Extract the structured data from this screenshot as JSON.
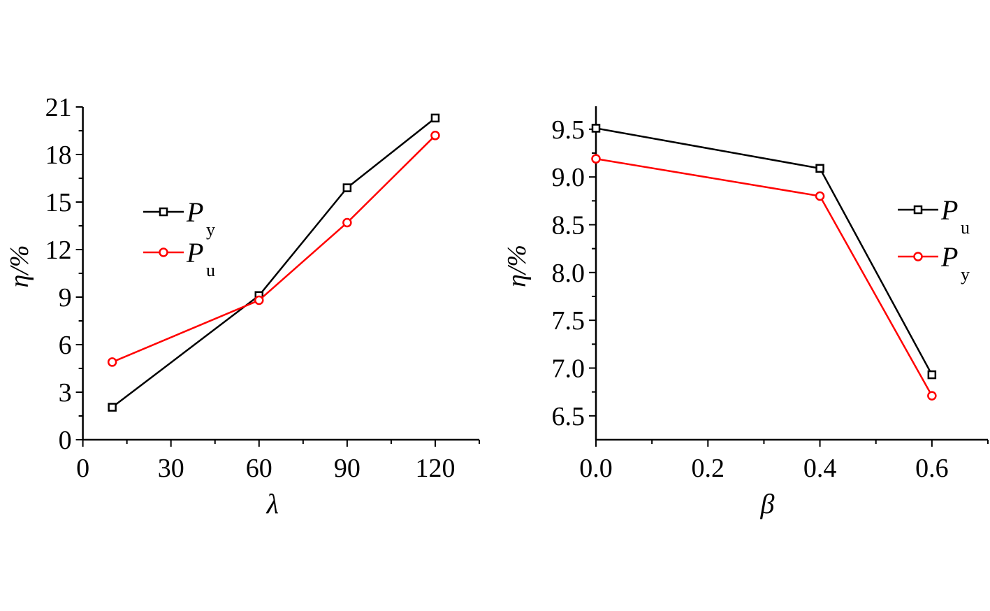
{
  "chart_data": [
    {
      "type": "line",
      "xlabel": "λ",
      "ylabel": "η/%",
      "xlim": [
        0,
        135
      ],
      "ylim": [
        0,
        21
      ],
      "xticks": [
        0,
        30,
        60,
        90,
        120
      ],
      "xtick_labels": [
        "0",
        "30",
        "60",
        "90",
        "120"
      ],
      "yticks": [
        0,
        3,
        6,
        9,
        12,
        15,
        18,
        21
      ],
      "ytick_labels": [
        "0",
        "3",
        "6",
        "9",
        "12",
        "15",
        "18",
        "21"
      ],
      "legend_position": "upper-left",
      "x": [
        10,
        60,
        90,
        120
      ],
      "series": [
        {
          "name": "P",
          "sub": "y",
          "color": "#000000",
          "marker": "square",
          "values": [
            2.05,
            9.1,
            15.9,
            20.3
          ]
        },
        {
          "name": "P",
          "sub": "u",
          "color": "#ff0000",
          "marker": "circle",
          "values": [
            4.9,
            8.8,
            13.7,
            19.2
          ]
        }
      ]
    },
    {
      "type": "line",
      "xlabel": "β",
      "ylabel": "η/%",
      "xlim": [
        0,
        0.7
      ],
      "ylim": [
        6.25,
        9.74
      ],
      "xticks": [
        0,
        0.2,
        0.4,
        0.6
      ],
      "xtick_labels": [
        "0.0",
        "0.2",
        "0.4",
        "0.6"
      ],
      "yticks": [
        6.5,
        7.0,
        7.5,
        8.0,
        8.5,
        9.0,
        9.5
      ],
      "ytick_labels": [
        "6.5",
        "7.0",
        "7.5",
        "8.0",
        "8.5",
        "9.0",
        "9.5"
      ],
      "legend_position": "right",
      "x": [
        0,
        0.4,
        0.6
      ],
      "series": [
        {
          "name": "P",
          "sub": "u",
          "color": "#000000",
          "marker": "square",
          "values": [
            9.51,
            9.09,
            6.93
          ]
        },
        {
          "name": "P",
          "sub": "y",
          "color": "#ff0000",
          "marker": "circle",
          "values": [
            9.19,
            8.8,
            6.71
          ]
        }
      ]
    }
  ]
}
